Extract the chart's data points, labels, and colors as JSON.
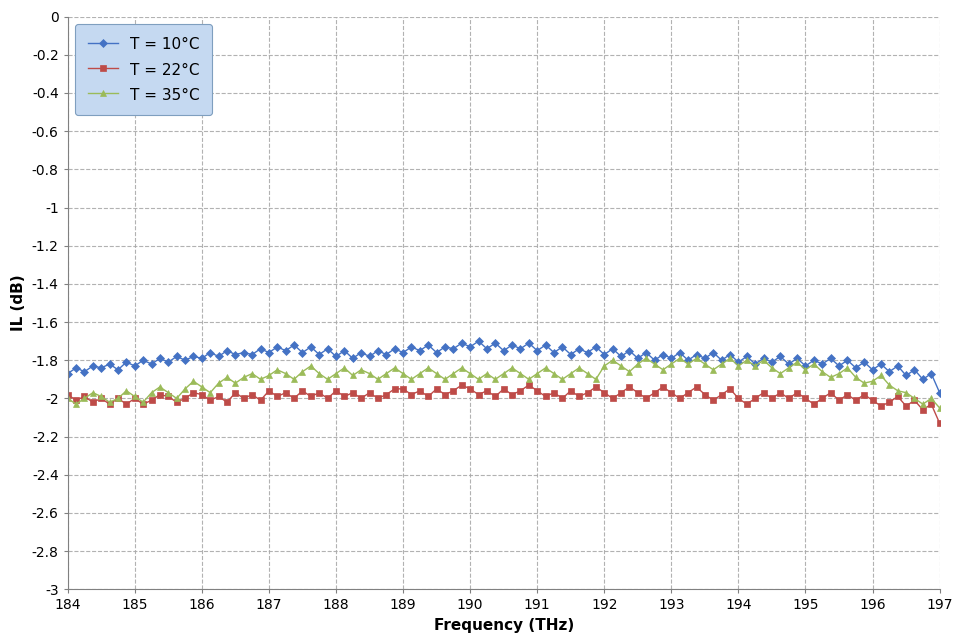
{
  "xlabel": "Frequency (THz)",
  "ylabel": "IL (dB)",
  "xlim": [
    184,
    197
  ],
  "ylim": [
    -3,
    0
  ],
  "xticks": [
    184,
    185,
    186,
    187,
    188,
    189,
    190,
    191,
    192,
    193,
    194,
    195,
    196,
    197
  ],
  "yticks": [
    0,
    -0.2,
    -0.4,
    -0.6,
    -0.8,
    -1,
    -1.2,
    -1.4,
    -1.6,
    -1.8,
    -2,
    -2.2,
    -2.4,
    -2.6,
    -2.8,
    -3
  ],
  "series": [
    {
      "label": "T = 10°C",
      "color": "#4472C4",
      "marker": "D",
      "markersize": 4,
      "x": [
        184.0,
        184.125,
        184.25,
        184.375,
        184.5,
        184.625,
        184.75,
        184.875,
        185.0,
        185.125,
        185.25,
        185.375,
        185.5,
        185.625,
        185.75,
        185.875,
        186.0,
        186.125,
        186.25,
        186.375,
        186.5,
        186.625,
        186.75,
        186.875,
        187.0,
        187.125,
        187.25,
        187.375,
        187.5,
        187.625,
        187.75,
        187.875,
        188.0,
        188.125,
        188.25,
        188.375,
        188.5,
        188.625,
        188.75,
        188.875,
        189.0,
        189.125,
        189.25,
        189.375,
        189.5,
        189.625,
        189.75,
        189.875,
        190.0,
        190.125,
        190.25,
        190.375,
        190.5,
        190.625,
        190.75,
        190.875,
        191.0,
        191.125,
        191.25,
        191.375,
        191.5,
        191.625,
        191.75,
        191.875,
        192.0,
        192.125,
        192.25,
        192.375,
        192.5,
        192.625,
        192.75,
        192.875,
        193.0,
        193.125,
        193.25,
        193.375,
        193.5,
        193.625,
        193.75,
        193.875,
        194.0,
        194.125,
        194.25,
        194.375,
        194.5,
        194.625,
        194.75,
        194.875,
        195.0,
        195.125,
        195.25,
        195.375,
        195.5,
        195.625,
        195.75,
        195.875,
        196.0,
        196.125,
        196.25,
        196.375,
        196.5,
        196.625,
        196.75,
        196.875,
        197.0
      ],
      "y": [
        -1.87,
        -1.84,
        -1.86,
        -1.83,
        -1.84,
        -1.82,
        -1.85,
        -1.81,
        -1.83,
        -1.8,
        -1.82,
        -1.79,
        -1.81,
        -1.78,
        -1.8,
        -1.78,
        -1.79,
        -1.76,
        -1.78,
        -1.75,
        -1.77,
        -1.76,
        -1.77,
        -1.74,
        -1.76,
        -1.73,
        -1.75,
        -1.72,
        -1.76,
        -1.73,
        -1.77,
        -1.74,
        -1.78,
        -1.75,
        -1.79,
        -1.76,
        -1.78,
        -1.75,
        -1.77,
        -1.74,
        -1.76,
        -1.73,
        -1.75,
        -1.72,
        -1.76,
        -1.73,
        -1.74,
        -1.71,
        -1.73,
        -1.7,
        -1.74,
        -1.71,
        -1.75,
        -1.72,
        -1.74,
        -1.71,
        -1.75,
        -1.72,
        -1.76,
        -1.73,
        -1.77,
        -1.74,
        -1.76,
        -1.73,
        -1.77,
        -1.74,
        -1.78,
        -1.75,
        -1.79,
        -1.76,
        -1.8,
        -1.77,
        -1.79,
        -1.76,
        -1.8,
        -1.77,
        -1.79,
        -1.76,
        -1.8,
        -1.77,
        -1.81,
        -1.78,
        -1.82,
        -1.79,
        -1.81,
        -1.78,
        -1.82,
        -1.79,
        -1.83,
        -1.8,
        -1.82,
        -1.79,
        -1.83,
        -1.8,
        -1.84,
        -1.81,
        -1.85,
        -1.82,
        -1.86,
        -1.83,
        -1.88,
        -1.85,
        -1.9,
        -1.87,
        -1.97
      ]
    },
    {
      "label": "T = 22°C",
      "color": "#BE4B48",
      "marker": "s",
      "markersize": 4,
      "x": [
        184.0,
        184.125,
        184.25,
        184.375,
        184.5,
        184.625,
        184.75,
        184.875,
        185.0,
        185.125,
        185.25,
        185.375,
        185.5,
        185.625,
        185.75,
        185.875,
        186.0,
        186.125,
        186.25,
        186.375,
        186.5,
        186.625,
        186.75,
        186.875,
        187.0,
        187.125,
        187.25,
        187.375,
        187.5,
        187.625,
        187.75,
        187.875,
        188.0,
        188.125,
        188.25,
        188.375,
        188.5,
        188.625,
        188.75,
        188.875,
        189.0,
        189.125,
        189.25,
        189.375,
        189.5,
        189.625,
        189.75,
        189.875,
        190.0,
        190.125,
        190.25,
        190.375,
        190.5,
        190.625,
        190.75,
        190.875,
        191.0,
        191.125,
        191.25,
        191.375,
        191.5,
        191.625,
        191.75,
        191.875,
        192.0,
        192.125,
        192.25,
        192.375,
        192.5,
        192.625,
        192.75,
        192.875,
        193.0,
        193.125,
        193.25,
        193.375,
        193.5,
        193.625,
        193.75,
        193.875,
        194.0,
        194.125,
        194.25,
        194.375,
        194.5,
        194.625,
        194.75,
        194.875,
        195.0,
        195.125,
        195.25,
        195.375,
        195.5,
        195.625,
        195.75,
        195.875,
        196.0,
        196.125,
        196.25,
        196.375,
        196.5,
        196.625,
        196.75,
        196.875,
        197.0
      ],
      "y": [
        -1.98,
        -2.01,
        -1.99,
        -2.02,
        -2.0,
        -2.03,
        -2.0,
        -2.03,
        -2.0,
        -2.03,
        -2.01,
        -1.98,
        -1.99,
        -2.02,
        -2.0,
        -1.97,
        -1.98,
        -2.01,
        -1.99,
        -2.02,
        -1.97,
        -2.0,
        -1.98,
        -2.01,
        -1.96,
        -1.99,
        -1.97,
        -2.0,
        -1.96,
        -1.99,
        -1.97,
        -2.0,
        -1.96,
        -1.99,
        -1.97,
        -2.0,
        -1.97,
        -2.0,
        -1.98,
        -1.95,
        -1.95,
        -1.98,
        -1.96,
        -1.99,
        -1.95,
        -1.98,
        -1.96,
        -1.93,
        -1.95,
        -1.98,
        -1.96,
        -1.99,
        -1.95,
        -1.98,
        -1.96,
        -1.93,
        -1.96,
        -1.99,
        -1.97,
        -2.0,
        -1.96,
        -1.99,
        -1.97,
        -1.94,
        -1.97,
        -2.0,
        -1.97,
        -1.94,
        -1.97,
        -2.0,
        -1.97,
        -1.94,
        -1.97,
        -2.0,
        -1.97,
        -1.94,
        -1.98,
        -2.01,
        -1.98,
        -1.95,
        -2.0,
        -2.03,
        -2.0,
        -1.97,
        -2.0,
        -1.97,
        -2.0,
        -1.97,
        -2.0,
        -2.03,
        -2.0,
        -1.97,
        -2.01,
        -1.98,
        -2.01,
        -1.98,
        -2.01,
        -2.04,
        -2.02,
        -1.99,
        -2.04,
        -2.01,
        -2.06,
        -2.03,
        -2.13
      ]
    },
    {
      "label": "T = 35°C",
      "color": "#9BBB59",
      "marker": "^",
      "markersize": 4,
      "x": [
        184.0,
        184.125,
        184.25,
        184.375,
        184.5,
        184.625,
        184.75,
        184.875,
        185.0,
        185.125,
        185.25,
        185.375,
        185.5,
        185.625,
        185.75,
        185.875,
        186.0,
        186.125,
        186.25,
        186.375,
        186.5,
        186.625,
        186.75,
        186.875,
        187.0,
        187.125,
        187.25,
        187.375,
        187.5,
        187.625,
        187.75,
        187.875,
        188.0,
        188.125,
        188.25,
        188.375,
        188.5,
        188.625,
        188.75,
        188.875,
        189.0,
        189.125,
        189.25,
        189.375,
        189.5,
        189.625,
        189.75,
        189.875,
        190.0,
        190.125,
        190.25,
        190.375,
        190.5,
        190.625,
        190.75,
        190.875,
        191.0,
        191.125,
        191.25,
        191.375,
        191.5,
        191.625,
        191.75,
        191.875,
        192.0,
        192.125,
        192.25,
        192.375,
        192.5,
        192.625,
        192.75,
        192.875,
        193.0,
        193.125,
        193.25,
        193.375,
        193.5,
        193.625,
        193.75,
        193.875,
        194.0,
        194.125,
        194.25,
        194.375,
        194.5,
        194.625,
        194.75,
        194.875,
        195.0,
        195.125,
        195.25,
        195.375,
        195.5,
        195.625,
        195.75,
        195.875,
        196.0,
        196.125,
        196.25,
        196.375,
        196.5,
        196.625,
        196.75,
        196.875,
        197.0
      ],
      "y": [
        -2.0,
        -2.03,
        -2.0,
        -1.97,
        -1.99,
        -2.02,
        -2.0,
        -1.96,
        -1.99,
        -2.02,
        -1.97,
        -1.94,
        -1.97,
        -2.0,
        -1.95,
        -1.91,
        -1.94,
        -1.97,
        -1.92,
        -1.89,
        -1.92,
        -1.89,
        -1.87,
        -1.9,
        -1.88,
        -1.85,
        -1.87,
        -1.9,
        -1.86,
        -1.83,
        -1.87,
        -1.9,
        -1.87,
        -1.84,
        -1.88,
        -1.85,
        -1.87,
        -1.9,
        -1.87,
        -1.84,
        -1.87,
        -1.9,
        -1.87,
        -1.84,
        -1.87,
        -1.9,
        -1.87,
        -1.84,
        -1.87,
        -1.9,
        -1.87,
        -1.9,
        -1.87,
        -1.84,
        -1.87,
        -1.9,
        -1.87,
        -1.84,
        -1.87,
        -1.9,
        -1.87,
        -1.84,
        -1.87,
        -1.9,
        -1.83,
        -1.8,
        -1.83,
        -1.86,
        -1.82,
        -1.79,
        -1.82,
        -1.85,
        -1.82,
        -1.79,
        -1.82,
        -1.79,
        -1.82,
        -1.85,
        -1.82,
        -1.79,
        -1.83,
        -1.8,
        -1.83,
        -1.8,
        -1.84,
        -1.87,
        -1.84,
        -1.81,
        -1.85,
        -1.82,
        -1.86,
        -1.89,
        -1.87,
        -1.84,
        -1.89,
        -1.92,
        -1.91,
        -1.88,
        -1.93,
        -1.96,
        -1.97,
        -2.0,
        -2.03,
        -2.0,
        -2.05
      ]
    }
  ],
  "background_color": "#FFFFFF",
  "plot_bg_color": "#FFFFFF",
  "grid_color": "#AAAAAA",
  "grid_style": "--",
  "legend_facecolor": "#C5D9F1",
  "legend_edgecolor": "#7F9FBF",
  "linewidth": 1.0,
  "xlabel_fontsize": 11,
  "ylabel_fontsize": 11,
  "tick_fontsize": 10,
  "legend_fontsize": 11
}
